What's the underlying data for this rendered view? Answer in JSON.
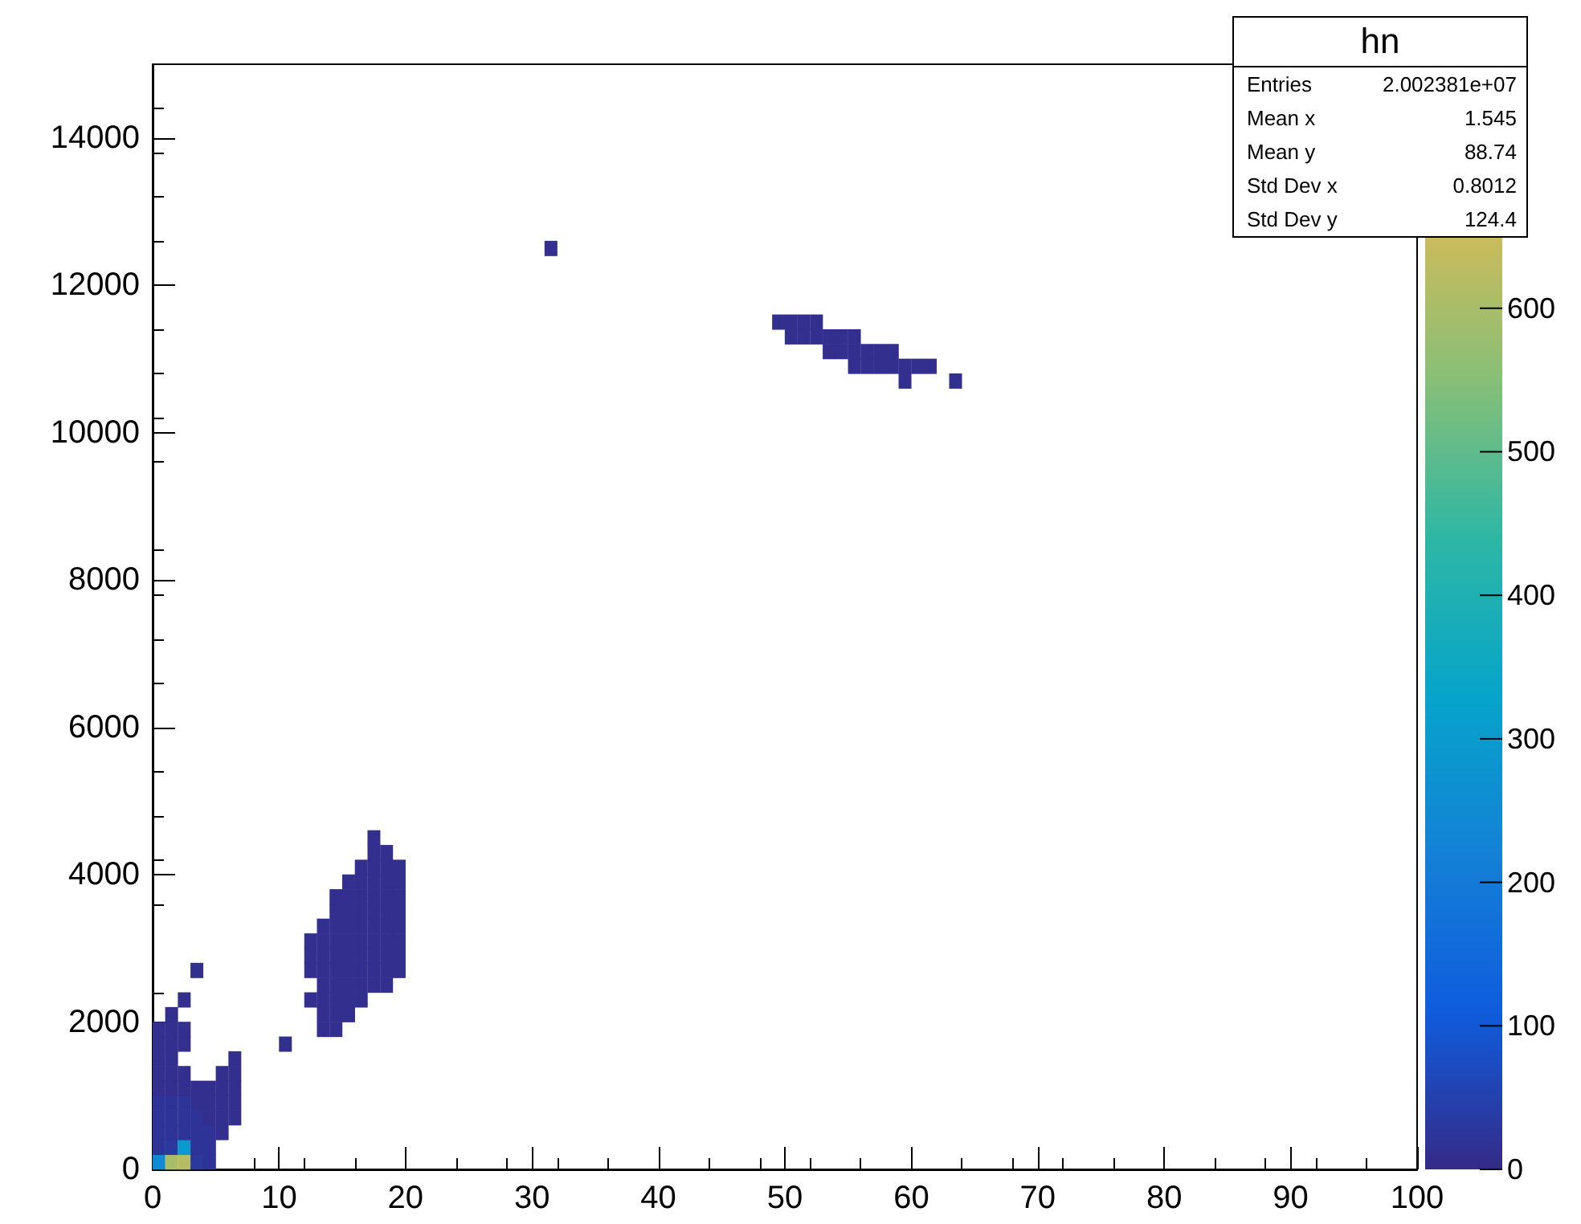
{
  "chart_data": {
    "type": "scatter",
    "marker": "square",
    "grid": false,
    "xlim": [
      0,
      100
    ],
    "xticks": [
      0,
      10,
      20,
      30,
      40,
      50,
      60,
      70,
      80,
      90,
      100
    ],
    "ylim": [
      0,
      15000
    ],
    "yticks": [
      0,
      2000,
      4000,
      6000,
      8000,
      10000,
      12000,
      14000
    ],
    "clim": [
      0,
      770
    ],
    "cticks": [
      0,
      100,
      200,
      300,
      400,
      500,
      600
    ],
    "annotations": [
      "hn",
      "Entries",
      "2.002381e+07",
      "Mean x",
      "1.545",
      "Mean y",
      "88.74",
      "Std Dev x",
      "0.8012",
      "Std Dev y",
      "124.4"
    ],
    "series": [
      {
        "x": [
          0.5,
          1.5,
          2.5,
          3.5,
          4.5,
          0.5,
          1.5,
          2.5,
          3.5,
          4.5,
          0.5,
          1.5,
          2.5,
          3.5,
          4.5,
          5.5,
          0.5,
          1.5,
          2.5,
          3.5,
          4.5,
          5.5,
          6.5,
          0.5,
          1.5,
          2.5,
          3.5,
          4.5,
          5.5,
          6.5,
          0.5,
          1.5,
          2.5,
          3.5,
          4.5,
          5.5,
          6.5,
          0.5,
          1.5,
          2.5,
          5.5,
          6.5,
          0.5,
          1.5,
          6.5,
          0.5,
          1.5,
          2.5,
          10.5,
          0.5,
          1.5,
          2.5,
          1.5,
          2.5,
          3.5,
          13.5,
          14.5,
          13.5,
          14.5,
          15.5,
          12.5,
          13.5,
          14.5,
          15.5,
          16.5,
          13.5,
          14.5,
          15.5,
          16.5,
          17.5,
          18.5,
          12.5,
          13.5,
          14.5,
          15.5,
          16.5,
          17.5,
          18.5,
          19.5,
          12.5,
          13.5,
          14.5,
          15.5,
          16.5,
          17.5,
          18.5,
          19.5,
          12.5,
          13.5,
          14.5,
          15.5,
          16.5,
          17.5,
          18.5,
          19.5,
          13.5,
          14.5,
          15.5,
          16.5,
          17.5,
          18.5,
          19.5,
          14.5,
          15.5,
          16.5,
          17.5,
          18.5,
          19.5,
          14.5,
          15.5,
          16.5,
          17.5,
          18.5,
          19.5,
          15.5,
          16.5,
          17.5,
          18.5,
          19.5,
          16.5,
          17.5,
          18.5,
          19.5,
          17.5,
          18.5,
          17.5,
          31.5,
          49.5,
          50.5,
          51.5,
          52.5,
          50.5,
          51.5,
          52.5,
          53.5,
          54.5,
          55.5,
          53.5,
          54.5,
          55.5,
          56.5,
          57.5,
          58.5,
          55.5,
          56.5,
          57.5,
          58.5,
          59.5,
          60.5,
          61.5,
          59.5,
          63.5
        ],
        "values": [
          100,
          100,
          100,
          100,
          100,
          300,
          300,
          300,
          300,
          300,
          500,
          500,
          500,
          500,
          500,
          500,
          700,
          700,
          700,
          700,
          700,
          700,
          700,
          900,
          900,
          900,
          900,
          900,
          900,
          900,
          1100,
          1100,
          1100,
          1100,
          1100,
          1100,
          1100,
          1300,
          1300,
          1300,
          1300,
          1300,
          1500,
          1500,
          1500,
          1700,
          1700,
          1700,
          1700,
          1900,
          1900,
          1900,
          2100,
          2300,
          2700,
          1900,
          1900,
          2100,
          2100,
          2100,
          2300,
          2300,
          2300,
          2300,
          2300,
          2500,
          2500,
          2500,
          2500,
          2500,
          2500,
          2700,
          2700,
          2700,
          2700,
          2700,
          2700,
          2700,
          2700,
          2900,
          2900,
          2900,
          2900,
          2900,
          2900,
          2900,
          2900,
          3100,
          3100,
          3100,
          3100,
          3100,
          3100,
          3100,
          3100,
          3300,
          3300,
          3300,
          3300,
          3300,
          3300,
          3300,
          3500,
          3500,
          3500,
          3500,
          3500,
          3500,
          3700,
          3700,
          3700,
          3700,
          3700,
          3700,
          3900,
          3900,
          3900,
          3900,
          3900,
          4100,
          4100,
          4100,
          4100,
          4300,
          4300,
          4500,
          12500,
          11500,
          11500,
          11500,
          11500,
          11300,
          11300,
          11300,
          11300,
          11300,
          11300,
          11100,
          11100,
          11100,
          11100,
          11100,
          11100,
          10900,
          10900,
          10900,
          10900,
          10900,
          10900,
          10900,
          10700,
          10700
        ],
        "cvalues": [
          250,
          600,
          620,
          30,
          20,
          20,
          30,
          300,
          20,
          20,
          20,
          20,
          20,
          20,
          20,
          10,
          20,
          20,
          20,
          20,
          10,
          10,
          10,
          20,
          20,
          20,
          10,
          10,
          10,
          10,
          10,
          10,
          10,
          10,
          10,
          10,
          10,
          10,
          10,
          10,
          10,
          10,
          10,
          10,
          10,
          10,
          10,
          10,
          10,
          10,
          10,
          10,
          10,
          10,
          10,
          10,
          10,
          10,
          10,
          10,
          10,
          10,
          10,
          10,
          10,
          10,
          10,
          10,
          10,
          10,
          10,
          10,
          10,
          10,
          10,
          10,
          10,
          10,
          10,
          10,
          10,
          10,
          10,
          10,
          10,
          10,
          10,
          10,
          10,
          10,
          10,
          10,
          10,
          10,
          10,
          10,
          10,
          10,
          10,
          10,
          10,
          10,
          10,
          10,
          10,
          10,
          10,
          10,
          10,
          10,
          10,
          10,
          10,
          10,
          10,
          10,
          10,
          10,
          10,
          10,
          10,
          10,
          10,
          10,
          10,
          10,
          10,
          10,
          10,
          10,
          10,
          10,
          10,
          10,
          10,
          10,
          10,
          10,
          10,
          10,
          10,
          10,
          10,
          10,
          10,
          10,
          10,
          10,
          10,
          10,
          10,
          10
        ]
      }
    ]
  }
}
